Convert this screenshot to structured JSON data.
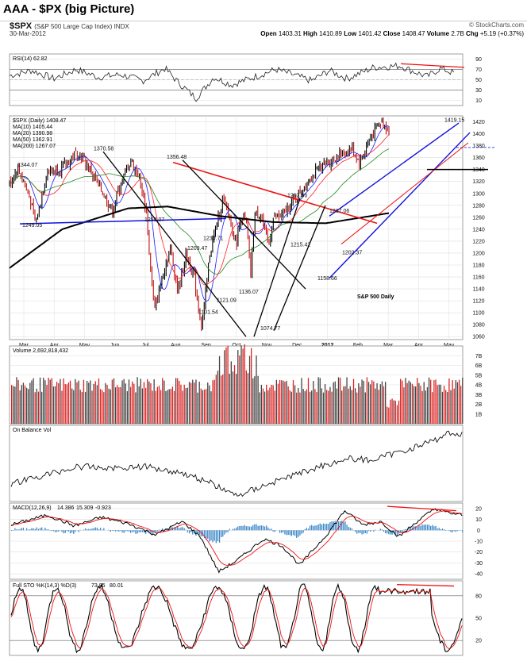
{
  "window": {
    "title": "AAA - $PX (big Picture)"
  },
  "header": {
    "symbol": "$SPX",
    "description": "(S&P 500 Large Cap Index) INDX",
    "date": "30-Mar-2012",
    "brand": "© StockCharts.com",
    "open_label": "Open",
    "open": "1403.31",
    "high_label": "High",
    "high": "1410.89",
    "low_label": "Low",
    "low": "1401.42",
    "close_label": "Close",
    "close": "1408.47",
    "volume_label": "Volume",
    "volume": "2.7B",
    "chg_label": "Chg",
    "chg": "+5.19 (+0.37%)"
  },
  "colors": {
    "price_up": "#000000",
    "ma10": "#1a1aff",
    "ma20": "#ff2020",
    "ma50": "#228822",
    "ma200": "#000000",
    "trend_red": "#ee1111",
    "trend_blue": "#1111dd",
    "volume_down": "#dd2222",
    "volume_up": "#444444",
    "macd_hist": "#3a86c8"
  },
  "chart_data": [
    {
      "type": "line",
      "panel": "rsi",
      "legend": "RSI(14) 62.82",
      "yticks": [
        90,
        70,
        50,
        30,
        10
      ],
      "ylim": [
        0,
        100
      ],
      "anchors": [
        [
          0,
          58
        ],
        [
          0.05,
          68
        ],
        [
          0.1,
          52
        ],
        [
          0.15,
          70
        ],
        [
          0.2,
          55
        ],
        [
          0.25,
          60
        ],
        [
          0.3,
          48
        ],
        [
          0.35,
          72
        ],
        [
          0.38,
          45
        ],
        [
          0.42,
          14
        ],
        [
          0.46,
          55
        ],
        [
          0.5,
          40
        ],
        [
          0.55,
          55
        ],
        [
          0.6,
          70
        ],
        [
          0.63,
          62
        ],
        [
          0.68,
          48
        ],
        [
          0.72,
          68
        ],
        [
          0.76,
          52
        ],
        [
          0.82,
          74
        ],
        [
          0.88,
          77
        ],
        [
          0.91,
          66
        ],
        [
          0.94,
          56
        ],
        [
          0.97,
          72
        ],
        [
          1.0,
          63
        ]
      ]
    },
    {
      "type": "line",
      "panel": "price",
      "legend_title": "$SPX (Daily) 1408.47",
      "legend": [
        "MA(10) 1405.44",
        "MA(20) 1390.98",
        "MA(50) 1362.91",
        "MA(200) 1267.07"
      ],
      "watermark": "S&P 500 Daily",
      "yticks": [
        1420,
        1400,
        1380,
        1360,
        1340,
        1320,
        1300,
        1280,
        1260,
        1240,
        1220,
        1200,
        1180,
        1160,
        1140,
        1120,
        1100,
        1080,
        1060
      ],
      "ylim": [
        1055,
        1430
      ],
      "xticks": [
        "Mar",
        "Apr",
        "May",
        "Jun",
        "Jul",
        "Aug",
        "Sep",
        "Oct",
        "Nov",
        "Dec",
        "2012",
        "Feb",
        "Mar",
        "Apr",
        "May"
      ],
      "price_anchors": [
        [
          0,
          1315
        ],
        [
          0.03,
          1344
        ],
        [
          0.07,
          1303
        ],
        [
          0.1,
          1249
        ],
        [
          0.14,
          1335
        ],
        [
          0.2,
          1343
        ],
        [
          0.26,
          1371
        ],
        [
          0.31,
          1335
        ],
        [
          0.35,
          1305
        ],
        [
          0.39,
          1270
        ],
        [
          0.42,
          1313
        ],
        [
          0.46,
          1356
        ],
        [
          0.49,
          1330
        ],
        [
          0.52,
          1270
        ],
        [
          0.53,
          1200
        ],
        [
          0.55,
          1102
        ],
        [
          0.58,
          1160
        ],
        [
          0.61,
          1209
        ],
        [
          0.64,
          1136
        ],
        [
          0.67,
          1200
        ],
        [
          0.7,
          1160
        ],
        [
          0.72,
          1100
        ],
        [
          0.73,
          1075
        ],
        [
          0.76,
          1200
        ],
        [
          0.79,
          1253
        ],
        [
          0.81,
          1293
        ],
        [
          0.84,
          1250
        ],
        [
          0.86,
          1215
        ],
        [
          0.88,
          1263
        ],
        [
          0.9,
          1248
        ],
        [
          0.915,
          1159
        ],
        [
          0.93,
          1265
        ],
        [
          0.955,
          1267
        ],
        [
          0.97,
          1230
        ],
        [
          0.985,
          1215
        ],
        [
          1.0,
          1258
        ],
        [
          1.03,
          1260
        ],
        [
          1.08,
          1290
        ],
        [
          1.13,
          1320
        ],
        [
          1.18,
          1345
        ],
        [
          1.24,
          1360
        ],
        [
          1.3,
          1375
        ],
        [
          1.33,
          1350
        ],
        [
          1.37,
          1395
        ],
        [
          1.41,
          1420
        ],
        [
          1.44,
          1408
        ]
      ],
      "annotations": [
        "1344.07",
        "1370.58",
        "1356.48",
        "1292.66",
        "1267.06",
        "1419.15",
        "1249.05",
        "1258.07",
        "1230.71",
        "1209.47",
        "1215.42",
        "1202.37",
        "1121.09",
        "1158.66",
        "1136.07",
        "1101.54",
        "1074.77"
      ]
    },
    {
      "type": "bar",
      "panel": "volume",
      "legend": "Volume 2,692,818,432",
      "yticks": [
        "7B",
        "6B",
        "5B",
        "4B",
        "3B",
        "2B",
        "1B"
      ],
      "ylim": [
        0,
        8
      ]
    },
    {
      "type": "line",
      "panel": "obv",
      "legend": "On Balance Vol"
    },
    {
      "type": "line",
      "panel": "macd",
      "legend_label": "MACD(12,26,9)",
      "legend_v1": "14.386",
      "legend_v2": "15.309",
      "legend_v3": "-0.923",
      "yticks": [
        20,
        10,
        0,
        -10,
        -20,
        -30,
        -40
      ],
      "ylim": [
        -45,
        25
      ]
    },
    {
      "type": "line",
      "panel": "sto",
      "legend_label": "Full STO %K(14,3) %D(3)",
      "legend_v1": "73.85",
      "legend_v2": "80.01",
      "yticks": [
        80,
        50,
        20
      ],
      "ylim": [
        0,
        100
      ]
    }
  ]
}
